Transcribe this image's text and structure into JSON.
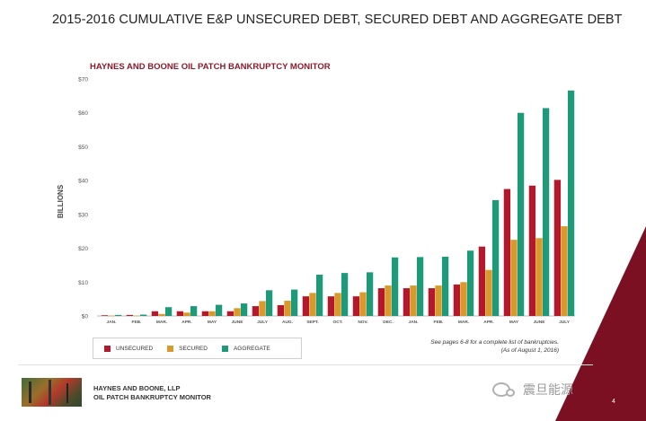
{
  "page": {
    "title": "2015-2016 CUMULATIVE E&P UNSECURED DEBT, SECURED DEBT AND AGGREGATE DEBT",
    "page_number": "4",
    "note_line1": "See pages 6-8 for a complete list of bankruptcies.",
    "note_line2": "(As of August 1, 2016)",
    "footer_firm": "HAYNES AND BOONE, LLP",
    "footer_monitor": "OIL PATCH BANKRUPTCY MONITOR",
    "watermark": "震旦能源",
    "colors": {
      "unsecured": "#b3182c",
      "secured": "#d99a2b",
      "aggregate": "#1c9a7a",
      "accent": "#7a1022"
    }
  },
  "chart_data": {
    "type": "bar",
    "title": "HAYNES AND BOONE OIL PATCH BANKRUPTCY MONITOR",
    "ylabel": "BILLIONS",
    "xlabel": "",
    "ylim": [
      0,
      70
    ],
    "yticks": [
      "$0",
      "$10",
      "$20",
      "$30",
      "$40",
      "$50",
      "$60",
      "$70"
    ],
    "grid": false,
    "legend_position": "bottom-left",
    "categories": [
      "JAN.",
      "FEB.",
      "MAR.",
      "APR.",
      "MAY",
      "JUNE",
      "JULY",
      "AUG.",
      "SEPT.",
      "OCT.",
      "NOV.",
      "DEC.",
      "JAN.",
      "FEB.",
      "MAR.",
      "APR.",
      "MAY",
      "JUNE",
      "JULY"
    ],
    "series": [
      {
        "name": "UNSECURED",
        "color": "#b3182c",
        "values": [
          0.2,
          0.3,
          1.4,
          1.4,
          1.4,
          1.4,
          2.9,
          3.2,
          5.8,
          5.8,
          5.8,
          8.2,
          8.2,
          8.2,
          9.3,
          20.5,
          37.5,
          38.5,
          40.2
        ]
      },
      {
        "name": "SECURED",
        "color": "#d99a2b",
        "values": [
          0.1,
          0.1,
          0.6,
          1.0,
          1.4,
          2.3,
          4.4,
          4.5,
          6.8,
          6.8,
          7.0,
          9.0,
          9.0,
          9.0,
          10.0,
          13.6,
          22.5,
          23.0,
          26.5
        ]
      },
      {
        "name": "AGGREGATE",
        "color": "#1c9a7a",
        "values": [
          0.3,
          0.4,
          2.6,
          2.9,
          3.3,
          3.7,
          7.6,
          7.8,
          12.2,
          12.7,
          12.9,
          17.3,
          17.4,
          17.5,
          19.3,
          34.2,
          60.0,
          61.4,
          66.6
        ]
      }
    ]
  }
}
